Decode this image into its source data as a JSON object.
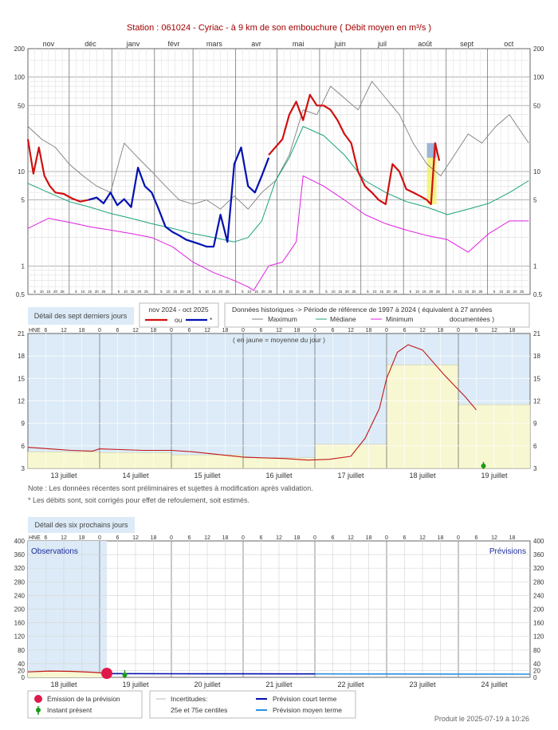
{
  "title": "Station : 061024      -   Cyriac - à 9 km de son embouchure   ( Débit moyen en m³/s )",
  "chart_data": [
    {
      "type": "line",
      "months": [
        "nov",
        "déc",
        "janv",
        "févr",
        "mars",
        "avr",
        "mai",
        "juin",
        "juil",
        "août",
        "sept",
        "oct"
      ],
      "day_ticks": [
        "5",
        "10",
        "15",
        "20",
        "25"
      ],
      "yscale": "log",
      "ylim": [
        0.5,
        200
      ],
      "yticks": [
        "200",
        "100",
        "50",
        "10",
        "5",
        "1",
        "0.5"
      ],
      "series": [
        {
          "name": "Maximum",
          "color": "#7f7f7f",
          "x": [
            0,
            10,
            20,
            30,
            40,
            50,
            60,
            70,
            80,
            90,
            100,
            110,
            120,
            130,
            140,
            150,
            160,
            170,
            180,
            190,
            200,
            210,
            220,
            230,
            240,
            250,
            260,
            270,
            280,
            290,
            300,
            310,
            320,
            330,
            340,
            350,
            364
          ],
          "values": [
            30,
            22,
            18,
            12,
            9,
            7,
            6,
            20,
            14,
            10,
            7,
            5,
            4.5,
            5,
            4,
            5.5,
            4,
            6,
            8,
            15,
            45,
            40,
            80,
            60,
            45,
            90,
            60,
            40,
            20,
            12,
            9,
            15,
            25,
            20,
            30,
            40,
            20
          ]
        },
        {
          "name": "Médiane",
          "color": "#1aa37a",
          "x": [
            0,
            15,
            30,
            45,
            60,
            75,
            90,
            105,
            120,
            135,
            150,
            160,
            170,
            180,
            190,
            200,
            215,
            230,
            245,
            260,
            275,
            290,
            305,
            320,
            335,
            350,
            364
          ],
          "values": [
            7.5,
            6,
            4.8,
            4.2,
            3.6,
            3.2,
            2.8,
            2.5,
            2.2,
            2,
            1.8,
            2,
            3,
            8,
            14,
            30,
            24,
            15,
            8,
            6,
            4.8,
            4.2,
            3.5,
            4,
            4.6,
            6,
            8
          ]
        },
        {
          "name": "Minimum",
          "color": "#e020e0",
          "x": [
            0,
            15,
            30,
            45,
            60,
            75,
            90,
            105,
            120,
            135,
            150,
            160,
            164,
            175,
            185,
            195,
            200,
            215,
            230,
            245,
            260,
            275,
            290,
            305,
            320,
            335,
            350,
            364
          ],
          "values": [
            2.5,
            3.2,
            2.9,
            2.6,
            2.4,
            2.2,
            2,
            1.6,
            1.1,
            0.85,
            0.7,
            0.6,
            0.55,
            1,
            1.1,
            1.8,
            9,
            7,
            5,
            3.5,
            2.8,
            2.4,
            2.1,
            1.9,
            1.4,
            2.2,
            3,
            3
          ]
        },
        {
          "name": "ou",
          "color": "#d01010",
          "x": [
            0,
            4,
            8,
            12,
            16,
            20,
            26,
            32,
            38,
            44
          ],
          "values": [
            22,
            9.5,
            18,
            9,
            7,
            6,
            5.8,
            5.2,
            4.8,
            5
          ],
          "x2": [
            175,
            185,
            190,
            195,
            200,
            205,
            210,
            215,
            220,
            225,
            230,
            235,
            240,
            245,
            250,
            255,
            260,
            265,
            270,
            275,
            280,
            285,
            290,
            293,
            296,
            299
          ],
          "values2": [
            15,
            22,
            40,
            55,
            35,
            65,
            50,
            50,
            45,
            35,
            25,
            20,
            10,
            7,
            6,
            5,
            4.5,
            12,
            10,
            6.5,
            6,
            5.5,
            5,
            4.5,
            20,
            13
          ]
        },
        {
          "name": "*",
          "color": "#0010b0",
          "x": [
            44,
            50,
            55,
            60,
            65,
            70,
            75,
            80,
            85,
            90,
            95,
            100,
            105,
            110,
            115,
            120,
            125,
            130,
            135,
            140,
            145,
            150,
            155,
            160,
            165,
            170,
            175
          ],
          "values": [
            5,
            5.3,
            4.6,
            6,
            4.4,
            5.1,
            4.2,
            11,
            7,
            6,
            4,
            2.6,
            2.3,
            2.1,
            1.9,
            1.8,
            1.7,
            1.6,
            1.6,
            3.5,
            1.8,
            12,
            18,
            7,
            6,
            9,
            14
          ]
        }
      ],
      "highlight": {
        "label": "juil",
        "x0": 290,
        "x1": 297
      }
    },
    {
      "type": "area",
      "title": "Détail des sept derniers jours",
      "note_top": "( en jaune = moyenne du jour )",
      "axis_label": "HNE",
      "hours": [
        "6",
        "12",
        "18",
        "0"
      ],
      "days": [
        "13 juillet",
        "14 juillet",
        "15 juillet",
        "16 juillet",
        "17 juillet",
        "18 juillet",
        "19 juillet"
      ],
      "ylim": [
        3,
        21
      ],
      "yticks": [
        "21",
        "18",
        "15",
        "12",
        "9",
        "6",
        "3"
      ],
      "daily_mean": [
        5.2,
        5.1,
        4.8,
        4.4,
        6.2,
        16.8,
        11.5
      ],
      "x": [
        0,
        0.3,
        0.6,
        0.9,
        1,
        1.3,
        1.6,
        2,
        2.3,
        2.6,
        3,
        3.3,
        3.6,
        3.9,
        4.2,
        4.5,
        4.7,
        4.9,
        5.0,
        5.15,
        5.3,
        5.5,
        5.8,
        6.1,
        6.25
      ],
      "values": [
        5.8,
        5.6,
        5.4,
        5.3,
        5.6,
        5.5,
        5.4,
        5.4,
        5.2,
        4.9,
        4.5,
        4.4,
        4.3,
        4.1,
        4.2,
        4.6,
        7.0,
        11.0,
        15.0,
        18.5,
        19.5,
        18.8,
        15.5,
        12.5,
        10.8
      ],
      "present_day": 6.35,
      "notes": [
        "Note : Les données récentes sont préliminaires et sujettes à modification après validation.",
        "* Les débits sont, soit corrigés pour effet de refoulement, soit estimés."
      ]
    },
    {
      "type": "line",
      "title": "Détail des six prochains jours",
      "axis_label": "HNE",
      "hours": [
        "6",
        "12",
        "18",
        "0"
      ],
      "days": [
        "18 juillet",
        "19 juillet",
        "20 juillet",
        "21 juillet",
        "22 juillet",
        "23 juillet",
        "24 juillet"
      ],
      "ylim": [
        0,
        400
      ],
      "yticks": [
        "400",
        "360",
        "320",
        "280",
        "240",
        "200",
        "160",
        "120",
        "80",
        "40",
        "20",
        "0"
      ],
      "observations_label": "Observations",
      "forecast_label": "Prévisions",
      "observed_x": [
        0,
        0.3,
        0.6,
        0.9,
        1.1
      ],
      "observed_values": [
        16,
        18.5,
        17.5,
        15,
        12
      ],
      "forecast_short_x": [
        1.1,
        2,
        3,
        4
      ],
      "forecast_short_values": [
        11,
        10.5,
        10.3,
        10
      ],
      "forecast_medium_x": [
        4,
        5,
        6,
        7
      ],
      "forecast_medium_values": [
        10,
        9.8,
        9.5,
        9.3
      ],
      "emission_day": 1.1,
      "present_day": 1.35
    }
  ],
  "legend1": {
    "period_label": "nov 2024 - oct 2025",
    "ou_label": "ou",
    "star_label": "*",
    "hist_label": "Données historiques -> Période de référence  de 1997 à 2024   ( équivalent à 27 années",
    "hist_label2": "documentées )",
    "max_label": "Maximum",
    "median_label": "Médiane",
    "min_label": "Minimum"
  },
  "legend2": {
    "emission_label": "Émission de la prévision",
    "present_label": "Instant présent",
    "uncert_label": "Incertitudes:",
    "uncert_label2": "25e et 75e centiles",
    "short_label": "Prévision court terme",
    "medium_label": "Prévision moyen terme"
  },
  "footer": "Produit le 2025-07-19 à 10:26",
  "colors": {
    "red": "#d01010",
    "blue": "#0010b0",
    "grey": "#7f7f7f",
    "green": "#1aa37a",
    "magenta": "#e020e0",
    "lightblue": "#dcebf7",
    "yellow": "#f7f7d2",
    "forecast_light": "#2a8fe0"
  }
}
